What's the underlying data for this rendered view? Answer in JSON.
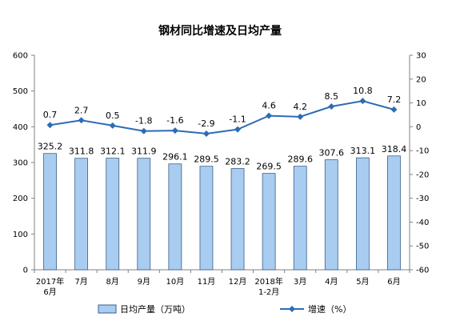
{
  "chart_data": {
    "type": "bar",
    "title": "钢材同比增速及日均产量",
    "categories": [
      [
        "2017年",
        "6月"
      ],
      [
        "7月"
      ],
      [
        "8月"
      ],
      [
        "9月"
      ],
      [
        "10月"
      ],
      [
        "11月"
      ],
      [
        "12月"
      ],
      [
        "2018年",
        "1-2月"
      ],
      [
        "3月"
      ],
      [
        "4月"
      ],
      [
        "5月"
      ],
      [
        "6月"
      ]
    ],
    "series": [
      {
        "name": "日均产量（万吨）",
        "type": "bar",
        "axis": "left",
        "values": [
          325.2,
          311.8,
          312.1,
          311.9,
          296.1,
          289.5,
          283.2,
          269.5,
          289.6,
          307.6,
          313.1,
          318.4
        ]
      },
      {
        "name": "增速（%）",
        "type": "line",
        "axis": "right",
        "values": [
          0.7,
          2.7,
          0.5,
          -1.8,
          -1.6,
          -2.9,
          -1.1,
          4.6,
          4.2,
          8.5,
          10.8,
          7.2
        ]
      }
    ],
    "y_left": {
      "min": 0,
      "max": 600,
      "ticks": [
        0,
        100,
        200,
        300,
        400,
        500,
        600
      ]
    },
    "y_right": {
      "min": -60,
      "max": 30,
      "ticks": [
        30,
        20,
        10,
        0,
        -10,
        -20,
        -30,
        -40,
        -50,
        -60
      ]
    },
    "grid": false,
    "legend_position": "bottom",
    "colors": {
      "bar_fill": "#a9cdf0",
      "bar_stroke": "#3a5f8a",
      "line": "#2e6bb5",
      "axis": "#808080"
    }
  }
}
